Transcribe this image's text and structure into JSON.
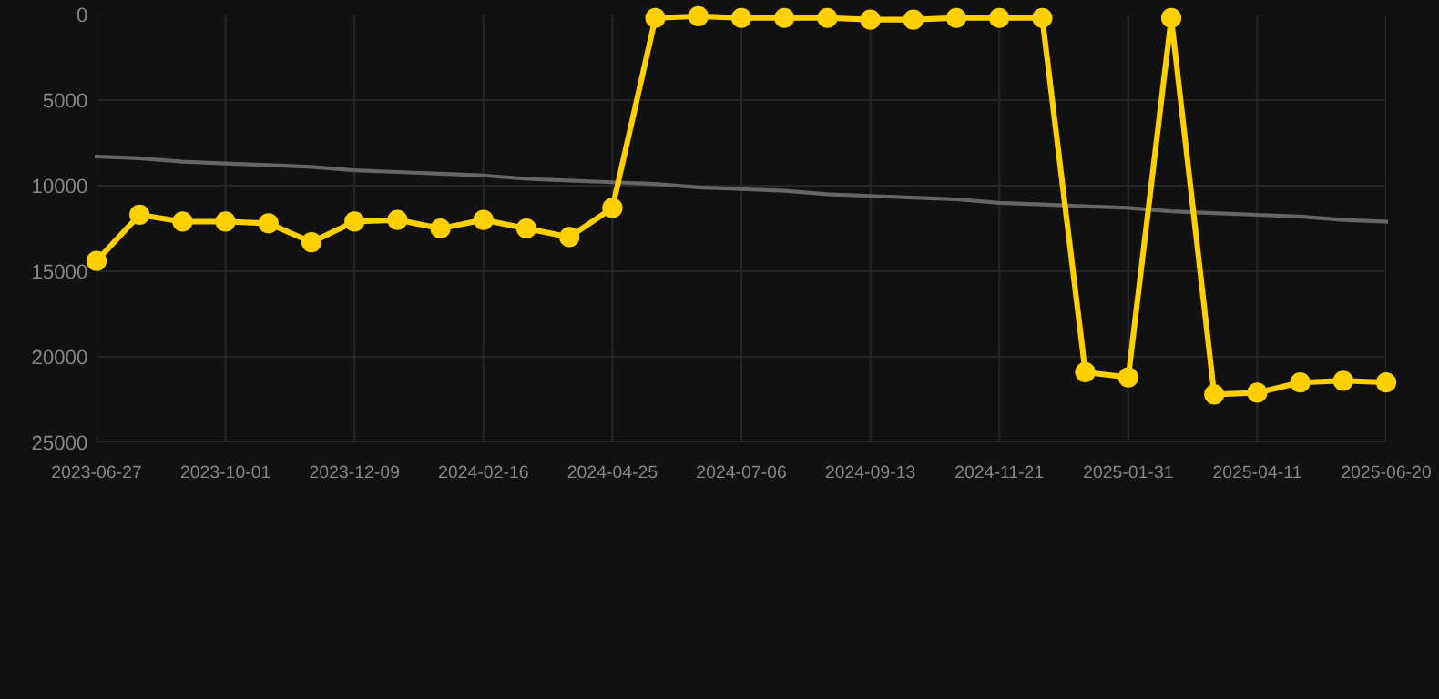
{
  "chart_data": {
    "type": "line",
    "categories": [
      "2023-06-27",
      null,
      null,
      "2023-10-01",
      null,
      null,
      "2023-12-09",
      null,
      null,
      "2024-02-16",
      null,
      null,
      "2024-04-25",
      null,
      null,
      "2024-07-06",
      null,
      null,
      "2024-09-13",
      null,
      null,
      "2024-11-21",
      null,
      null,
      "2025-01-31",
      null,
      null,
      "2025-04-11",
      null,
      null,
      "2025-06-20"
    ],
    "series": [
      {
        "color": "#ffd000",
        "marker": "circle",
        "values": [
          14400,
          11700,
          12100,
          12100,
          12200,
          13300,
          12100,
          12000,
          12500,
          12000,
          12500,
          13000,
          11300,
          200,
          100,
          200,
          200,
          200,
          300,
          300,
          200,
          200,
          200,
          20900,
          21200,
          200,
          22200,
          22100,
          21500,
          21400,
          21500
        ]
      },
      {
        "color": "#666666",
        "marker": "none",
        "values": [
          8300,
          8400,
          8600,
          8700,
          8800,
          8900,
          9100,
          9200,
          9300,
          9400,
          9600,
          9700,
          9800,
          9900,
          10100,
          10200,
          10300,
          10500,
          10600,
          10700,
          10800,
          11000,
          11100,
          11200,
          11300,
          11500,
          11600,
          11700,
          11800,
          12000,
          12100
        ]
      }
    ],
    "ylim": [
      25000,
      0
    ],
    "yticks": [
      0,
      5000,
      10000,
      15000,
      20000,
      25000
    ],
    "grid": true,
    "line_style": "solid"
  }
}
